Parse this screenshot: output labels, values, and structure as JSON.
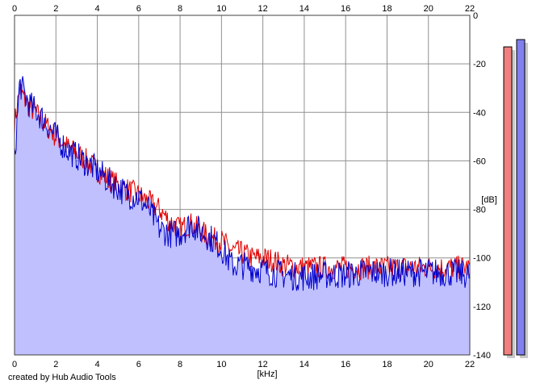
{
  "chart_data": {
    "type": "area",
    "xlabel": "[kHz]",
    "ylabel": "[dB]",
    "xlim": [
      0,
      22
    ],
    "ylim": [
      -140,
      0
    ],
    "x_ticks": [
      0,
      2,
      4,
      6,
      8,
      10,
      12,
      14,
      16,
      18,
      20,
      22
    ],
    "y_ticks": [
      0,
      -20,
      -40,
      -60,
      -80,
      -100,
      -120,
      -140
    ],
    "grid": true,
    "series": [
      {
        "color": "#e00000",
        "x": [
          0,
          0.25,
          0.5,
          0.75,
          1,
          1.5,
          2,
          2.5,
          3,
          3.5,
          4,
          4.5,
          5,
          5.5,
          6,
          6.5,
          7,
          7.5,
          8,
          8.5,
          9,
          9.5,
          10,
          10.5,
          11,
          11.5,
          12,
          12.5,
          13,
          14,
          15,
          16,
          17,
          18,
          19,
          20,
          21,
          22
        ],
        "values": [
          -45,
          -30,
          -35,
          -38,
          -40,
          -45,
          -50,
          -54,
          -57,
          -60,
          -64,
          -67,
          -70,
          -72,
          -74,
          -77,
          -80,
          -85,
          -88,
          -86,
          -89,
          -92,
          -93,
          -97,
          -98,
          -100,
          -100,
          -101,
          -103,
          -104,
          -104,
          -104,
          -104,
          -104,
          -104,
          -104,
          -104,
          -104
        ]
      },
      {
        "color": "#0000cc",
        "x": [
          0,
          0.25,
          0.5,
          0.75,
          1,
          1.5,
          2,
          2.5,
          3,
          3.5,
          4,
          4.5,
          5,
          5.5,
          6,
          6.5,
          7,
          7.5,
          8,
          8.5,
          9,
          9.5,
          10,
          10.5,
          11,
          11.5,
          12,
          12.5,
          13,
          14,
          15,
          16,
          17,
          18,
          19,
          20,
          21,
          22
        ],
        "values": [
          -60,
          -28,
          -33,
          -37,
          -39,
          -44,
          -50,
          -55,
          -58,
          -61,
          -64,
          -68,
          -71,
          -74,
          -75,
          -80,
          -88,
          -90,
          -90,
          -86,
          -89,
          -92,
          -96,
          -103,
          -103,
          -104,
          -105,
          -106,
          -107,
          -108,
          -107,
          -107,
          -106,
          -106,
          -106,
          -106,
          -106,
          -107
        ]
      }
    ],
    "level_bars": [
      {
        "color": "#f08080",
        "value": -13
      },
      {
        "color": "#8080f0",
        "value": -10
      }
    ],
    "fill_color": "#c0c0ff"
  },
  "credit": "created by Hub Audio Tools"
}
